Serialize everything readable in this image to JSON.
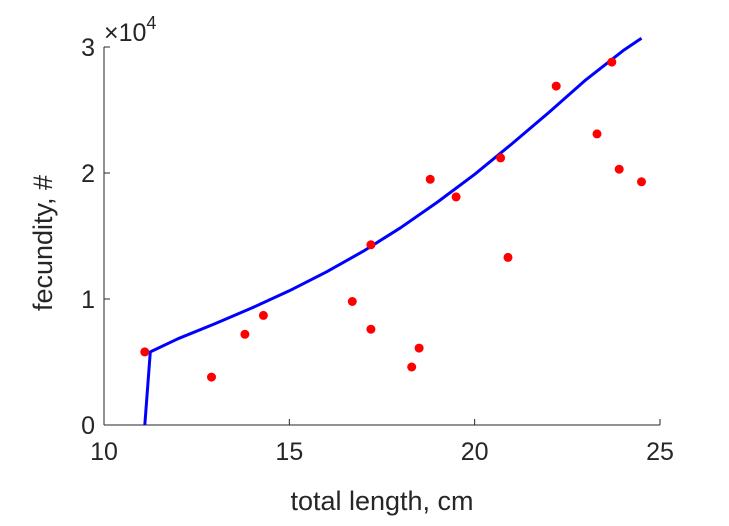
{
  "chart_data": {
    "type": "scatter",
    "xlabel": "total length, cm",
    "ylabel": "fecundity, #",
    "xlim": [
      10,
      25
    ],
    "ylim": [
      0,
      30000
    ],
    "x_ticks": [
      10,
      15,
      20,
      25
    ],
    "x_tick_labels": [
      "10",
      "15",
      "20",
      "25"
    ],
    "y_ticks": [
      0,
      10000,
      20000,
      30000
    ],
    "y_tick_labels": [
      "0",
      "1",
      "2",
      "3"
    ],
    "y_multiplier": {
      "base": "10",
      "exponent": "4",
      "prefix": "×"
    },
    "grid": false,
    "series": [
      {
        "type": "scatter",
        "color": "#ff0000",
        "points": [
          {
            "x": 11.1,
            "y": 5800
          },
          {
            "x": 12.9,
            "y": 3800
          },
          {
            "x": 13.8,
            "y": 7200
          },
          {
            "x": 14.3,
            "y": 8700
          },
          {
            "x": 16.7,
            "y": 9800
          },
          {
            "x": 17.2,
            "y": 7600
          },
          {
            "x": 17.2,
            "y": 14300
          },
          {
            "x": 18.3,
            "y": 4600
          },
          {
            "x": 18.5,
            "y": 6100
          },
          {
            "x": 18.8,
            "y": 19500
          },
          {
            "x": 19.5,
            "y": 18100
          },
          {
            "x": 20.7,
            "y": 21200
          },
          {
            "x": 20.9,
            "y": 13300
          },
          {
            "x": 22.2,
            "y": 26900
          },
          {
            "x": 23.3,
            "y": 23100
          },
          {
            "x": 23.7,
            "y": 28800
          },
          {
            "x": 23.9,
            "y": 20300
          },
          {
            "x": 24.5,
            "y": 19300
          }
        ]
      },
      {
        "type": "line",
        "color": "#0000ff",
        "points": [
          {
            "x": 11.1,
            "y": 0
          },
          {
            "x": 11.25,
            "y": 5800
          },
          {
            "x": 12.0,
            "y": 6850
          },
          {
            "x": 13.0,
            "y": 8050
          },
          {
            "x": 14.0,
            "y": 9300
          },
          {
            "x": 15.0,
            "y": 10650
          },
          {
            "x": 16.0,
            "y": 12150
          },
          {
            "x": 17.0,
            "y": 13800
          },
          {
            "x": 18.0,
            "y": 15650
          },
          {
            "x": 19.0,
            "y": 17700
          },
          {
            "x": 20.0,
            "y": 19900
          },
          {
            "x": 21.0,
            "y": 22300
          },
          {
            "x": 22.0,
            "y": 24800
          },
          {
            "x": 23.0,
            "y": 27400
          },
          {
            "x": 24.0,
            "y": 29700
          },
          {
            "x": 24.5,
            "y": 30700
          }
        ]
      }
    ]
  }
}
